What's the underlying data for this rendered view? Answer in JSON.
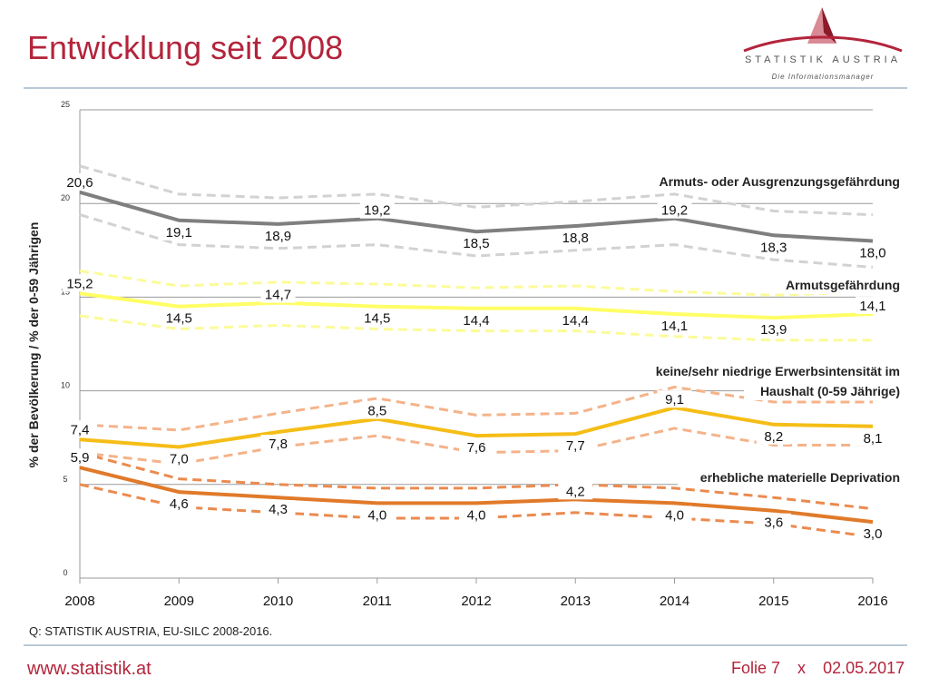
{
  "slide": {
    "title": "Entwicklung seit 2008",
    "source": "Q: STATISTIK AUSTRIA, EU-SILC 2008-2016.",
    "url": "www.statistik.at",
    "folie": "Folie 7",
    "separator": "x",
    "date": "02.05.2017"
  },
  "logo": {
    "name": "STATISTIK AUSTRIA",
    "tagline": "Die Informationsmanager",
    "colors": {
      "triangle_dark": "#8b1a2b",
      "triangle_light": "#d88a95",
      "swoosh": "#b3243b"
    }
  },
  "colors": {
    "title": "#b3243b",
    "rule": "#b9c9d6",
    "series": [
      "#7f7f7f",
      "#ffff66",
      "#f5bd16",
      "#e07a2a"
    ],
    "bounds": [
      "#d2d2d2",
      "#fbfb9a",
      "#f4b38a",
      "#eb8a4e"
    ]
  },
  "chart_data": {
    "type": "line",
    "ylabel": "% der Bevölkerung / % der 0-59 Jährigen",
    "ylim": [
      0,
      25
    ],
    "yticks": [
      0,
      5,
      10,
      15,
      20,
      25
    ],
    "grid": true,
    "x": [
      "2008",
      "2009",
      "2010",
      "2011",
      "2012",
      "2013",
      "2014",
      "2015",
      "2016"
    ],
    "value_labels": [
      [
        "20,6",
        "19,1",
        "18,9",
        "19,2",
        "18,5",
        "18,8",
        "19,2",
        "18,3",
        "18,0"
      ],
      [
        "15,2",
        "14,5",
        "14,7",
        "14,5",
        "14,4",
        "14,4",
        "14,1",
        "13,9",
        "14,1"
      ],
      [
        "7,4",
        "7,0",
        "7,8",
        "8,5",
        "7,6",
        "7,7",
        "9,1",
        "8,2",
        "8,1"
      ],
      [
        "5,9",
        "4,6",
        "4,3",
        "4,0",
        "4,0",
        "4,2",
        "4,0",
        "3,6",
        "3,0"
      ]
    ],
    "series": [
      {
        "name": "Armuts- oder Ausgrenzungsgefährdung",
        "values": [
          20.6,
          19.1,
          18.9,
          19.2,
          18.5,
          18.8,
          19.2,
          18.3,
          18.0
        ],
        "upper": [
          22.0,
          20.5,
          20.3,
          20.5,
          19.8,
          20.1,
          20.5,
          19.6,
          19.4
        ],
        "lower": [
          19.4,
          17.8,
          17.6,
          17.8,
          17.2,
          17.5,
          17.8,
          17.0,
          16.6
        ]
      },
      {
        "name": "Armutsgefährdung",
        "values": [
          15.2,
          14.5,
          14.7,
          14.5,
          14.4,
          14.4,
          14.1,
          13.9,
          14.1
        ],
        "upper": [
          16.4,
          15.6,
          15.8,
          15.7,
          15.5,
          15.6,
          15.3,
          15.1,
          15.3
        ],
        "lower": [
          14.0,
          13.3,
          13.5,
          13.3,
          13.2,
          13.2,
          12.9,
          12.7,
          12.7
        ]
      },
      {
        "name": "keine/sehr niedrige Erwerbsintensität im Haushalt (0-59 Jährige)",
        "values": [
          7.4,
          7.0,
          7.8,
          8.5,
          7.6,
          7.7,
          9.1,
          8.2,
          8.1
        ],
        "upper": [
          8.2,
          7.9,
          8.8,
          9.6,
          8.7,
          8.8,
          10.2,
          9.4,
          9.4
        ],
        "lower": [
          6.7,
          6.1,
          7.0,
          7.6,
          6.7,
          6.8,
          8.0,
          7.1,
          7.1
        ]
      },
      {
        "name": "erhebliche materielle Deprivation",
        "values": [
          5.9,
          4.6,
          4.3,
          4.0,
          4.0,
          4.2,
          4.0,
          3.6,
          3.0
        ],
        "upper": [
          6.7,
          5.3,
          5.0,
          4.8,
          4.8,
          5.0,
          4.8,
          4.3,
          3.7
        ],
        "lower": [
          5.0,
          3.8,
          3.5,
          3.2,
          3.2,
          3.5,
          3.2,
          2.9,
          2.2
        ]
      }
    ]
  }
}
